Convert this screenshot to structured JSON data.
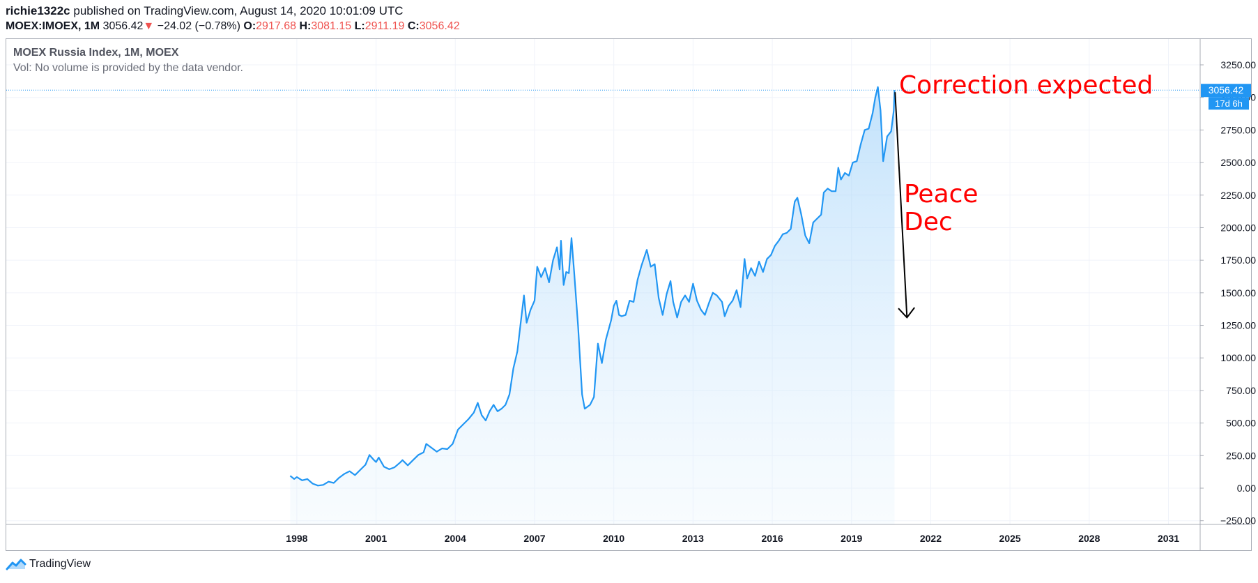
{
  "header": {
    "user": "richie1322c",
    "published_text": "published on TradingView.com, August 14, 2020 10:01:09 UTC",
    "symbol": "MOEX:IMOEX, 1M",
    "price": "3056.42",
    "change_arrow": "▼",
    "change": "−24.02 (−0.78%)",
    "o_label": "O:",
    "o_value": "2917.68",
    "h_label": "H:",
    "h_value": "3081.15",
    "l_label": "L:",
    "l_value": "2911.19",
    "c_label": "C:",
    "c_value": "3056.42"
  },
  "legend": {
    "title": "MOEX Russia Index, 1M, MOEX",
    "volume_note": "Vol: No volume is provided by the data vendor."
  },
  "footer": {
    "brand": "TradingView"
  },
  "colors": {
    "line": "#2196f3",
    "area_top": "#bbdefb",
    "annotation": "#ff0000",
    "price_tag": "#2196f3",
    "grid": "#f0f3fa"
  },
  "chart_data": {
    "type": "area",
    "series": [
      {
        "values_x_y": [
          [
            1997.75,
            95
          ],
          [
            1997.9,
            70
          ],
          [
            1998.0,
            85
          ],
          [
            1998.2,
            60
          ],
          [
            1998.4,
            70
          ],
          [
            1998.6,
            35
          ],
          [
            1998.8,
            20
          ],
          [
            1999.0,
            25
          ],
          [
            1999.2,
            50
          ],
          [
            1999.4,
            40
          ],
          [
            1999.6,
            80
          ],
          [
            1999.8,
            110
          ],
          [
            2000.0,
            130
          ],
          [
            2000.2,
            100
          ],
          [
            2000.4,
            140
          ],
          [
            2000.6,
            180
          ],
          [
            2000.75,
            255
          ],
          [
            2000.9,
            220
          ],
          [
            2001.0,
            200
          ],
          [
            2001.1,
            235
          ],
          [
            2001.3,
            165
          ],
          [
            2001.5,
            145
          ],
          [
            2001.7,
            160
          ],
          [
            2001.9,
            195
          ],
          [
            2002.0,
            215
          ],
          [
            2002.2,
            175
          ],
          [
            2002.4,
            215
          ],
          [
            2002.6,
            255
          ],
          [
            2002.8,
            275
          ],
          [
            2002.9,
            340
          ],
          [
            2003.1,
            310
          ],
          [
            2003.3,
            280
          ],
          [
            2003.5,
            305
          ],
          [
            2003.7,
            300
          ],
          [
            2003.9,
            340
          ],
          [
            2004.1,
            450
          ],
          [
            2004.3,
            490
          ],
          [
            2004.5,
            530
          ],
          [
            2004.7,
            580
          ],
          [
            2004.85,
            655
          ],
          [
            2005.0,
            560
          ],
          [
            2005.15,
            520
          ],
          [
            2005.3,
            590
          ],
          [
            2005.45,
            640
          ],
          [
            2005.6,
            590
          ],
          [
            2005.75,
            610
          ],
          [
            2005.9,
            640
          ],
          [
            2006.05,
            720
          ],
          [
            2006.2,
            920
          ],
          [
            2006.35,
            1050
          ],
          [
            2006.5,
            1310
          ],
          [
            2006.6,
            1480
          ],
          [
            2006.7,
            1270
          ],
          [
            2006.85,
            1370
          ],
          [
            2007.0,
            1440
          ],
          [
            2007.1,
            1700
          ],
          [
            2007.25,
            1620
          ],
          [
            2007.4,
            1690
          ],
          [
            2007.55,
            1580
          ],
          [
            2007.7,
            1750
          ],
          [
            2007.85,
            1850
          ],
          [
            2007.95,
            1680
          ],
          [
            2008.0,
            1900
          ],
          [
            2008.1,
            1560
          ],
          [
            2008.2,
            1660
          ],
          [
            2008.3,
            1650
          ],
          [
            2008.4,
            1920
          ],
          [
            2008.5,
            1660
          ],
          [
            2008.65,
            1240
          ],
          [
            2008.8,
            720
          ],
          [
            2008.9,
            610
          ],
          [
            2009.1,
            640
          ],
          [
            2009.25,
            700
          ],
          [
            2009.4,
            1110
          ],
          [
            2009.55,
            960
          ],
          [
            2009.7,
            1140
          ],
          [
            2009.9,
            1290
          ],
          [
            2010.0,
            1400
          ],
          [
            2010.1,
            1440
          ],
          [
            2010.2,
            1330
          ],
          [
            2010.3,
            1320
          ],
          [
            2010.45,
            1330
          ],
          [
            2010.6,
            1440
          ],
          [
            2010.75,
            1430
          ],
          [
            2010.9,
            1600
          ],
          [
            2011.05,
            1710
          ],
          [
            2011.25,
            1830
          ],
          [
            2011.4,
            1700
          ],
          [
            2011.55,
            1720
          ],
          [
            2011.7,
            1460
          ],
          [
            2011.85,
            1330
          ],
          [
            2012.0,
            1490
          ],
          [
            2012.15,
            1590
          ],
          [
            2012.25,
            1430
          ],
          [
            2012.4,
            1310
          ],
          [
            2012.55,
            1430
          ],
          [
            2012.7,
            1480
          ],
          [
            2012.85,
            1430
          ],
          [
            2013.0,
            1570
          ],
          [
            2013.15,
            1440
          ],
          [
            2013.3,
            1370
          ],
          [
            2013.45,
            1330
          ],
          [
            2013.6,
            1420
          ],
          [
            2013.75,
            1500
          ],
          [
            2013.9,
            1480
          ],
          [
            2014.1,
            1430
          ],
          [
            2014.2,
            1320
          ],
          [
            2014.35,
            1400
          ],
          [
            2014.5,
            1440
          ],
          [
            2014.65,
            1520
          ],
          [
            2014.8,
            1390
          ],
          [
            2014.95,
            1760
          ],
          [
            2015.05,
            1610
          ],
          [
            2015.2,
            1690
          ],
          [
            2015.35,
            1630
          ],
          [
            2015.5,
            1740
          ],
          [
            2015.65,
            1660
          ],
          [
            2015.8,
            1760
          ],
          [
            2015.95,
            1790
          ],
          [
            2016.1,
            1860
          ],
          [
            2016.25,
            1900
          ],
          [
            2016.4,
            1950
          ],
          [
            2016.55,
            1960
          ],
          [
            2016.7,
            1990
          ],
          [
            2016.85,
            2200
          ],
          [
            2016.95,
            2230
          ],
          [
            2017.1,
            2100
          ],
          [
            2017.25,
            1940
          ],
          [
            2017.4,
            1880
          ],
          [
            2017.55,
            2040
          ],
          [
            2017.7,
            2070
          ],
          [
            2017.85,
            2100
          ],
          [
            2017.95,
            2270
          ],
          [
            2018.1,
            2300
          ],
          [
            2018.25,
            2280
          ],
          [
            2018.4,
            2280
          ],
          [
            2018.5,
            2460
          ],
          [
            2018.6,
            2370
          ],
          [
            2018.75,
            2420
          ],
          [
            2018.9,
            2400
          ],
          [
            2019.05,
            2500
          ],
          [
            2019.2,
            2510
          ],
          [
            2019.35,
            2640
          ],
          [
            2019.5,
            2750
          ],
          [
            2019.65,
            2760
          ],
          [
            2019.8,
            2880
          ],
          [
            2019.9,
            3000
          ],
          [
            2020.0,
            3080
          ],
          [
            2020.1,
            2900
          ],
          [
            2020.2,
            2510
          ],
          [
            2020.35,
            2700
          ],
          [
            2020.5,
            2740
          ],
          [
            2020.6,
            2900
          ],
          [
            2020.63,
            3056
          ]
        ]
      }
    ],
    "x_ticks": [
      "1998",
      "2001",
      "2004",
      "2007",
      "2010",
      "2013",
      "2016",
      "2019",
      "2022",
      "2025",
      "2028",
      "2031"
    ],
    "y_ticks": [
      "3250.00",
      "3000.00",
      "2750.00",
      "2500.00",
      "2250.00",
      "2000.00",
      "1750.00",
      "1500.00",
      "1250.00",
      "1000.00",
      "750.00",
      "500.00",
      "250.00",
      "0.00",
      "−250.00"
    ],
    "xlim": [
      1987.0,
      2032.2
    ],
    "ylim": [
      -250,
      3400
    ],
    "last_price_label": "3056.42",
    "countdown_label": "17d 6h",
    "annotations": {
      "correction": "Correction expected",
      "peace_line1": "Peace",
      "peace_line2": "Dec"
    },
    "arrow": {
      "from": [
        2020.65,
        3040
      ],
      "to": [
        2021.1,
        1310
      ]
    }
  }
}
